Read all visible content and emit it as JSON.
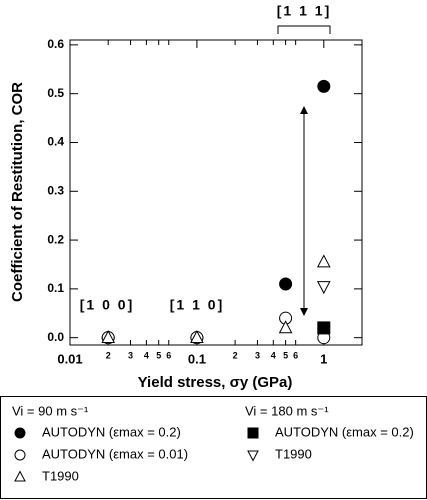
{
  "chart_data": {
    "type": "scatter",
    "x_label": "Yield stress, σy (GPa)",
    "y_label": "Coefficient of Restitution, COR",
    "xscale": "log",
    "xlim": [
      0.01,
      2
    ],
    "ylim": [
      -0.015,
      0.61
    ],
    "xticks": [
      0.01,
      {
        "value": 0.02,
        "label": "2"
      },
      {
        "value": 0.03,
        "label": "3"
      },
      {
        "value": 0.04,
        "label": "4"
      },
      {
        "value": 0.05,
        "label": "5"
      },
      {
        "value": 0.06,
        "label": "6"
      },
      0.1,
      {
        "value": 0.2,
        "label": "2"
      },
      {
        "value": 0.3,
        "label": "3"
      },
      {
        "value": 0.4,
        "label": "4"
      },
      {
        "value": 0.5,
        "label": "5"
      },
      {
        "value": 0.6,
        "label": "6"
      },
      1
    ],
    "yticks": [
      {
        "value": 0,
        "label": "0.0"
      },
      0.1,
      0.2,
      0.3,
      0.4,
      0.5,
      0.6
    ],
    "annotations": [
      "[1 0 0]",
      "[1 1 0]",
      "[1 1 1]"
    ],
    "series": [
      {
        "name": "AUTODYN (εmax = 0.2)",
        "group": "Vi = 90 m s⁻¹",
        "marker": "circle-filled",
        "color": "#000000",
        "x": [
          0.02,
          0.1,
          0.5,
          1
        ],
        "values": [
          0,
          0,
          0.11,
          0.515
        ]
      },
      {
        "name": "AUTODYN (εmax = 0.01)",
        "group": "Vi = 90 m s⁻¹",
        "marker": "circle-open",
        "color": "#000000",
        "x": [
          0.02,
          0.1,
          0.5,
          1
        ],
        "values": [
          0,
          0,
          0.04,
          0
        ]
      },
      {
        "name": "T1990",
        "group": "Vi = 90 m s⁻¹",
        "marker": "triangle-up-open",
        "color": "#000000",
        "x": [
          0.02,
          0.1,
          0.5,
          1
        ],
        "values": [
          0,
          0,
          0.02,
          0.155
        ]
      },
      {
        "name": "AUTODYN (εmax = 0.2)",
        "group": "Vi = 180 m s⁻¹",
        "marker": "square-filled",
        "color": "#000000",
        "x": [
          1
        ],
        "values": [
          0.02
        ]
      },
      {
        "name": "T1990",
        "group": "Vi = 180 m s⁻¹",
        "marker": "triangle-down-open",
        "color": "#000000",
        "x": [
          1
        ],
        "values": [
          0.105
        ]
      }
    ]
  }
}
